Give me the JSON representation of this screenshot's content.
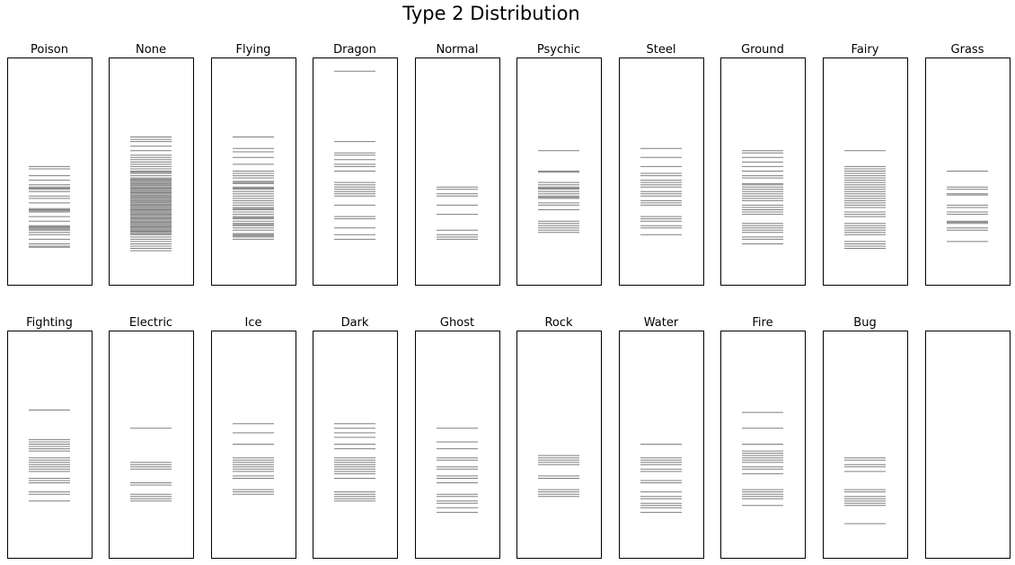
{
  "figure": {
    "title": "Type 2 Distribution"
  },
  "chart_data": {
    "type": "rug",
    "description_axes": "Each panel shows a rug of horizontal strokes; y axis (hidden) shares range across panels.",
    "ylim": [
      0,
      1
    ],
    "axes_visible": false,
    "grid": false,
    "stroke_color": "#000000",
    "stroke_alpha": 0.5,
    "panels": [
      {
        "name": "Poison",
        "values": [
          0.52,
          0.51,
          0.48,
          0.46,
          0.44,
          0.43,
          0.425,
          0.42,
          0.41,
          0.39,
          0.38,
          0.36,
          0.335,
          0.33,
          0.325,
          0.32,
          0.3,
          0.28,
          0.26,
          0.255,
          0.25,
          0.245,
          0.24,
          0.23,
          0.22,
          0.2,
          0.18,
          0.17,
          0.165
        ]
      },
      {
        "name": "None",
        "values": [
          0.65,
          0.64,
          0.63,
          0.61,
          0.59,
          0.57,
          0.56,
          0.55,
          0.54,
          0.53,
          0.52,
          0.51,
          0.5,
          0.495,
          0.49,
          0.48,
          0.47,
          0.465,
          0.46,
          0.455,
          0.45,
          0.445,
          0.44,
          0.435,
          0.43,
          0.425,
          0.42,
          0.415,
          0.41,
          0.405,
          0.4,
          0.395,
          0.39,
          0.385,
          0.38,
          0.375,
          0.37,
          0.365,
          0.36,
          0.355,
          0.35,
          0.345,
          0.34,
          0.335,
          0.33,
          0.325,
          0.32,
          0.315,
          0.31,
          0.305,
          0.3,
          0.295,
          0.29,
          0.285,
          0.28,
          0.275,
          0.27,
          0.265,
          0.26,
          0.255,
          0.25,
          0.245,
          0.24,
          0.235,
          0.23,
          0.225,
          0.22,
          0.21,
          0.2,
          0.19,
          0.18,
          0.17,
          0.16,
          0.15
        ]
      },
      {
        "name": "Flying",
        "values": [
          0.65,
          0.6,
          0.585,
          0.56,
          0.53,
          0.5,
          0.49,
          0.48,
          0.47,
          0.455,
          0.45,
          0.445,
          0.43,
          0.425,
          0.42,
          0.41,
          0.4,
          0.39,
          0.38,
          0.37,
          0.36,
          0.35,
          0.34,
          0.335,
          0.33,
          0.32,
          0.31,
          0.3,
          0.295,
          0.29,
          0.28,
          0.27,
          0.265,
          0.26,
          0.25,
          0.24,
          0.225,
          0.22,
          0.215,
          0.21,
          0.2
        ]
      },
      {
        "name": "Dragon",
        "values": [
          0.94,
          0.63,
          0.58,
          0.57,
          0.55,
          0.53,
          0.52,
          0.5,
          0.45,
          0.44,
          0.43,
          0.42,
          0.41,
          0.4,
          0.39,
          0.35,
          0.3,
          0.29,
          0.25,
          0.22,
          0.2
        ]
      },
      {
        "name": "Normal",
        "values": [
          0.43,
          0.42,
          0.4,
          0.39,
          0.35,
          0.31,
          0.24,
          0.22,
          0.21,
          0.2
        ]
      },
      {
        "name": "Psychic",
        "values": [
          0.59,
          0.5,
          0.495,
          0.45,
          0.44,
          0.43,
          0.425,
          0.42,
          0.41,
          0.4,
          0.39,
          0.385,
          0.38,
          0.36,
          0.35,
          0.33,
          0.28,
          0.27,
          0.26,
          0.25,
          0.24,
          0.23
        ]
      },
      {
        "name": "Steel",
        "values": [
          0.6,
          0.56,
          0.52,
          0.49,
          0.48,
          0.46,
          0.45,
          0.44,
          0.43,
          0.41,
          0.4,
          0.39,
          0.37,
          0.36,
          0.35,
          0.3,
          0.29,
          0.28,
          0.26,
          0.25,
          0.22
        ]
      },
      {
        "name": "Ground",
        "values": [
          0.59,
          0.58,
          0.56,
          0.54,
          0.52,
          0.5,
          0.48,
          0.47,
          0.445,
          0.44,
          0.43,
          0.42,
          0.41,
          0.4,
          0.39,
          0.38,
          0.37,
          0.35,
          0.34,
          0.33,
          0.32,
          0.31,
          0.27,
          0.26,
          0.25,
          0.24,
          0.23,
          0.21,
          0.2,
          0.18
        ]
      },
      {
        "name": "Fairy",
        "values": [
          0.59,
          0.52,
          0.51,
          0.5,
          0.49,
          0.48,
          0.47,
          0.46,
          0.45,
          0.44,
          0.43,
          0.42,
          0.41,
          0.4,
          0.39,
          0.38,
          0.37,
          0.36,
          0.35,
          0.34,
          0.32,
          0.31,
          0.3,
          0.27,
          0.26,
          0.25,
          0.24,
          0.23,
          0.22,
          0.19,
          0.18,
          0.17,
          0.16
        ]
      },
      {
        "name": "Grass",
        "values": [
          0.5,
          0.43,
          0.42,
          0.4,
          0.395,
          0.35,
          0.34,
          0.32,
          0.31,
          0.28,
          0.275,
          0.27,
          0.25,
          0.24,
          0.19
        ]
      },
      {
        "name": "Fighting",
        "values": [
          0.65,
          0.52,
          0.51,
          0.5,
          0.49,
          0.48,
          0.47,
          0.44,
          0.43,
          0.42,
          0.41,
          0.4,
          0.39,
          0.38,
          0.35,
          0.34,
          0.33,
          0.29,
          0.28,
          0.25
        ]
      },
      {
        "name": "Electric",
        "values": [
          0.57,
          0.42,
          0.41,
          0.4,
          0.39,
          0.33,
          0.32,
          0.28,
          0.27,
          0.26,
          0.25
        ]
      },
      {
        "name": "Ice",
        "values": [
          0.59,
          0.55,
          0.5,
          0.44,
          0.43,
          0.42,
          0.41,
          0.4,
          0.39,
          0.38,
          0.36,
          0.35,
          0.3,
          0.29,
          0.28
        ]
      },
      {
        "name": "Dark",
        "values": [
          0.59,
          0.57,
          0.55,
          0.53,
          0.5,
          0.48,
          0.44,
          0.43,
          0.42,
          0.41,
          0.4,
          0.39,
          0.38,
          0.37,
          0.35,
          0.29,
          0.28,
          0.27,
          0.26,
          0.25
        ]
      },
      {
        "name": "Ghost",
        "values": [
          0.57,
          0.51,
          0.48,
          0.44,
          0.43,
          0.4,
          0.39,
          0.36,
          0.35,
          0.33,
          0.28,
          0.27,
          0.25,
          0.24,
          0.22,
          0.2
        ]
      },
      {
        "name": "Rock",
        "values": [
          0.45,
          0.44,
          0.43,
          0.42,
          0.41,
          0.36,
          0.35,
          0.3,
          0.29,
          0.28,
          0.27
        ]
      },
      {
        "name": "Water",
        "values": [
          0.5,
          0.44,
          0.43,
          0.42,
          0.41,
          0.39,
          0.38,
          0.34,
          0.33,
          0.29,
          0.27,
          0.26,
          0.24,
          0.23,
          0.22,
          0.2
        ]
      },
      {
        "name": "Fire",
        "values": [
          0.64,
          0.57,
          0.5,
          0.47,
          0.46,
          0.45,
          0.44,
          0.43,
          0.42,
          0.4,
          0.39,
          0.37,
          0.3,
          0.29,
          0.28,
          0.27,
          0.26,
          0.23
        ]
      },
      {
        "name": "Bug",
        "values": [
          0.44,
          0.43,
          0.41,
          0.4,
          0.38,
          0.3,
          0.29,
          0.27,
          0.26,
          0.25,
          0.24,
          0.23,
          0.15
        ]
      },
      {
        "name": "",
        "values": []
      }
    ]
  }
}
